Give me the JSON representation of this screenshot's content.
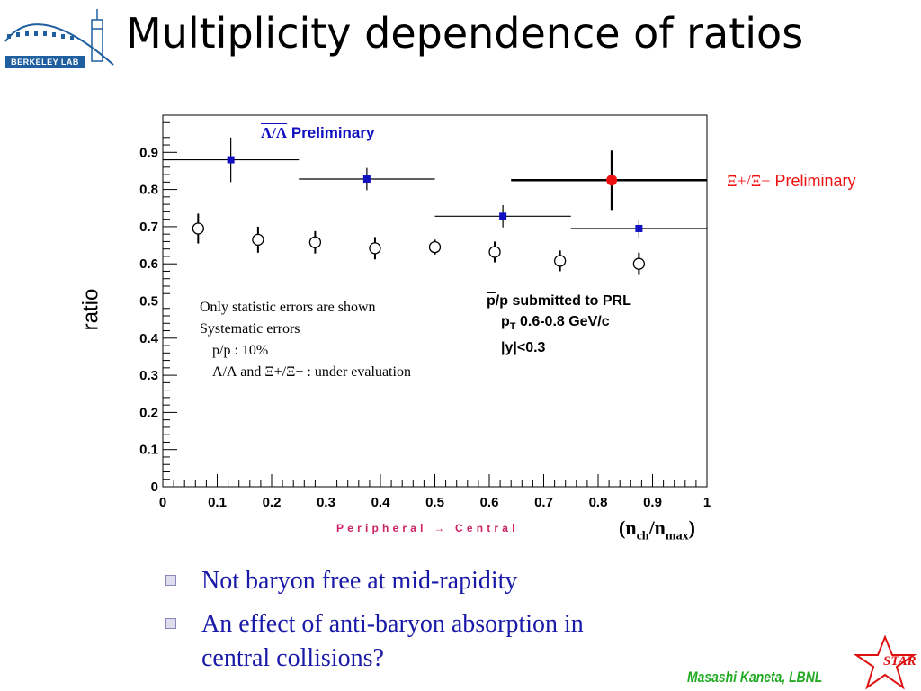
{
  "slide": {
    "title": "Multiplicity dependence of ratios",
    "logo_text": "BERKELEY LAB",
    "star_text": "STAR",
    "author": "Masashi Kaneta, LBNL",
    "bullets": [
      "Not baryon free at mid-rapidity",
      "An effect of anti-baryon absorption in",
      "central collisions?"
    ]
  },
  "annotations": {
    "lambda_label_prefix": "Λ/Λ",
    "lambda_label_word": "Preliminary",
    "xi_label_prefix": "Ξ+/Ξ−",
    "xi_label_word": "Preliminary",
    "notes": {
      "line1": "Only statistic errors are shown",
      "line2": "Systematic errors",
      "line3_ratio": "p/p : 10%",
      "line4_ratio1": "Λ/Λ",
      "line4_and": "and",
      "line4_ratio2": "Ξ+/Ξ−",
      "line4_rest": ": under evaluation"
    },
    "prl": {
      "line1_rest": "/p submitted to PRL",
      "line1_p": "p",
      "line2_pt": "p",
      "line2_sub": "T",
      "line2_rest": "0.6-0.8 GeV/c",
      "line3": "|y|<0.3"
    },
    "peripheral_central": "Peripheral → Central"
  },
  "chart_data": {
    "type": "scatter",
    "xlabel": "(nch/nmax)",
    "xlabel_parts": {
      "open": "(n",
      "sub1": "ch",
      "mid": "/n",
      "sub2": "max",
      "close": ")"
    },
    "ylabel": "ratio",
    "xlim": [
      0,
      1
    ],
    "ylim": [
      0,
      1
    ],
    "x_ticks": [
      "0",
      "0.1",
      "0.2",
      "0.3",
      "0.4",
      "0.5",
      "0.6",
      "0.7",
      "0.8",
      "0.9",
      "1"
    ],
    "y_ticks": [
      "0",
      "0.1",
      "0.2",
      "0.3",
      "0.4",
      "0.5",
      "0.6",
      "0.7",
      "0.8",
      "0.9"
    ],
    "series": [
      {
        "name": "p̄/p",
        "marker": "open-circle",
        "color": "#000000",
        "points": [
          {
            "x": 0.065,
            "y": 0.695,
            "yerr": 0.04
          },
          {
            "x": 0.175,
            "y": 0.665,
            "yerr": 0.035
          },
          {
            "x": 0.28,
            "y": 0.658,
            "yerr": 0.03
          },
          {
            "x": 0.39,
            "y": 0.642,
            "yerr": 0.03
          },
          {
            "x": 0.5,
            "y": 0.645,
            "yerr": 0.02
          },
          {
            "x": 0.61,
            "y": 0.632,
            "yerr": 0.028
          },
          {
            "x": 0.73,
            "y": 0.608,
            "yerr": 0.028
          },
          {
            "x": 0.875,
            "y": 0.6,
            "yerr": 0.03
          }
        ]
      },
      {
        "name": "Λ̄/Λ",
        "marker": "filled-square",
        "color": "#1010c0",
        "points": [
          {
            "x": 0.125,
            "y": 0.88,
            "xerr": 0.125,
            "yerr": 0.06
          },
          {
            "x": 0.375,
            "y": 0.828,
            "xerr": 0.125,
            "yerr": 0.03
          },
          {
            "x": 0.625,
            "y": 0.728,
            "xerr": 0.125,
            "yerr": 0.03
          },
          {
            "x": 0.875,
            "y": 0.695,
            "xerr": 0.125,
            "yerr": 0.025
          }
        ]
      },
      {
        "name": "Ξ̄+/Ξ−",
        "marker": "filled-circle",
        "color": "#ee1111",
        "points": [
          {
            "x": 0.825,
            "y": 0.825,
            "xerr": 0.185,
            "yerr": 0.08
          }
        ]
      }
    ]
  }
}
